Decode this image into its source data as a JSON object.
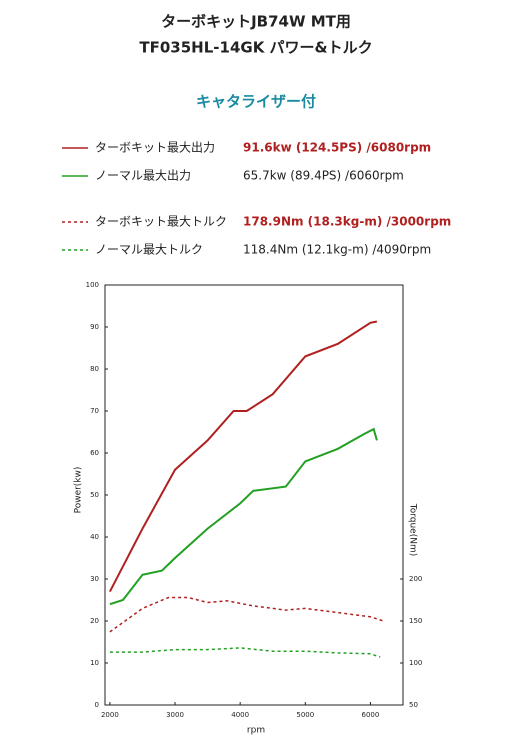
{
  "chart_data": {
    "type": "line",
    "title": [
      "ターボキットJB74W MT用",
      "TF035HL-14GK パワー&トルク"
    ],
    "subtitle": "キャタライザー付",
    "xlabel": "rpm",
    "ylabel": "Power(kw)",
    "y2label": "Torque(Nm)",
    "xlim": [
      1925,
      6500
    ],
    "xticks": [
      2000,
      3000,
      4000,
      5000,
      6000
    ],
    "ylim": [
      0,
      100
    ],
    "yticks": [
      0,
      10,
      20,
      30,
      40,
      50,
      60,
      70,
      80,
      90,
      100
    ],
    "y2lim": [
      50,
      550
    ],
    "y2ticks": [
      50,
      100,
      150,
      200
    ],
    "series": [
      {
        "name": "ターボキット最大出力",
        "peak": "91.6kw (124.5PS) /6080rpm",
        "color": "#b02020",
        "dashed": false,
        "axis": "y",
        "x": [
          2000,
          2500,
          3000,
          3500,
          3900,
          4100,
          4500,
          5000,
          5500,
          6000,
          6100
        ],
        "values": [
          27,
          42,
          56,
          63,
          70,
          70,
          74,
          83,
          86,
          91,
          91.3
        ]
      },
      {
        "name": "ノーマル最大出力",
        "peak": "65.7kw (89.4PS) /6060rpm",
        "color": "#22a022",
        "dashed": false,
        "axis": "y",
        "x": [
          2000,
          2200,
          2500,
          2800,
          3000,
          3500,
          4000,
          4200,
          4700,
          5000,
          5500,
          5900,
          6050,
          6100
        ],
        "values": [
          24,
          25,
          31,
          32,
          35,
          42,
          48,
          51,
          52,
          58,
          61,
          64.5,
          65.7,
          63
        ]
      },
      {
        "name": "ターボキット最大トルク",
        "peak": "178.9Nm (18.3kg-m) /3000rpm",
        "color": "#b02020",
        "dashed": true,
        "axis": "y2",
        "x": [
          2000,
          2500,
          2900,
          3200,
          3500,
          3800,
          4200,
          4700,
          5000,
          5500,
          6000,
          6200
        ],
        "values": [
          137,
          165,
          178,
          178,
          172,
          174,
          168,
          163,
          165,
          160,
          155,
          150
        ]
      },
      {
        "name": "ノーマル最大トルク",
        "peak": "118.4Nm (12.1kg-m) /4090rpm",
        "color": "#22a022",
        "dashed": true,
        "axis": "y2",
        "x": [
          2000,
          2500,
          3000,
          3500,
          4000,
          4500,
          5000,
          5500,
          6000,
          6150
        ],
        "values": [
          113,
          113,
          116,
          116,
          118,
          114,
          114,
          112,
          111,
          107
        ]
      }
    ]
  }
}
